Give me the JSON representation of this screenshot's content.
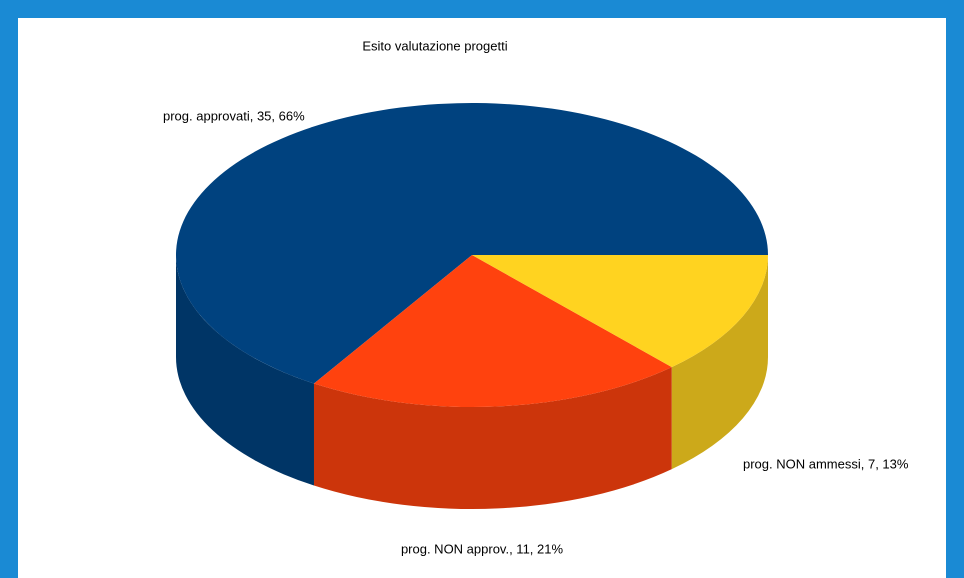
{
  "chart_data": {
    "type": "pie3d",
    "title": "Esito valutazione progetti",
    "labels": [
      "prog. approvati, 35, 66%",
      "prog. NON approv., 11, 21%",
      "prog. NON ammessi, 7, 13%"
    ],
    "values": [
      35,
      11,
      7
    ],
    "colors": [
      "#00427f",
      "#ff420e",
      "#ffd320"
    ]
  }
}
